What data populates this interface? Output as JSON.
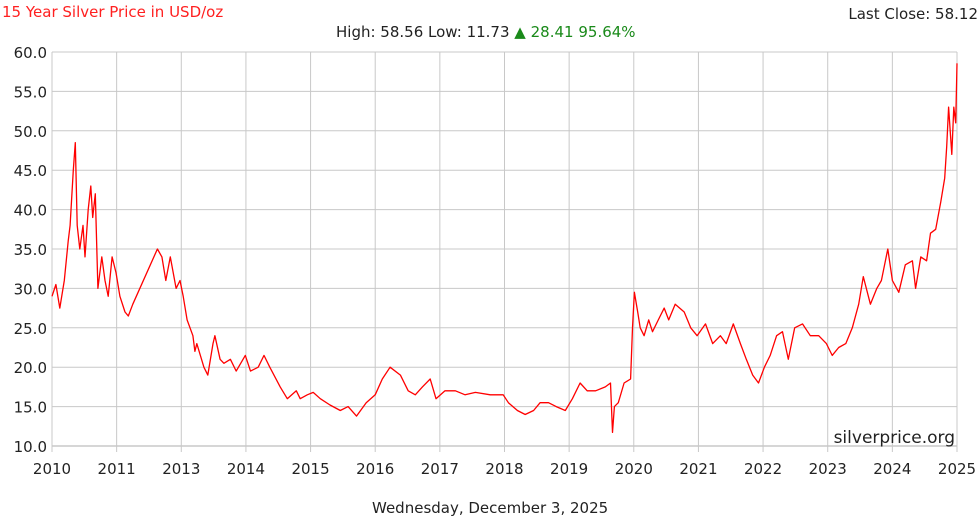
{
  "header": {
    "title": "15 Year Silver Price in USD/oz",
    "last_close_label": "Last Close: 58.12",
    "high_label": "High: 58.56",
    "low_label": "Low: 11.73",
    "change_arrow": "▲",
    "change_value": "28.41",
    "change_percent": "95.64%"
  },
  "footer": {
    "date": "Wednesday, December 3, 2025"
  },
  "watermark": "silverprice.org",
  "colors": {
    "line": "#ff0000",
    "title": "#ff2020",
    "change": "#1a8a1a",
    "grid": "#c8c8c8"
  },
  "chart_data": {
    "type": "line",
    "title": "15 Year Silver Price in USD/oz",
    "xlabel": "",
    "ylabel": "",
    "ylim": [
      10,
      60
    ],
    "xlim": [
      2010.92,
      2024.92
    ],
    "yticks": [
      "10.0",
      "15.0",
      "20.0",
      "25.0",
      "30.0",
      "35.0",
      "40.0",
      "45.0",
      "50.0",
      "55.0",
      "60.0"
    ],
    "xtick_labels": [
      "2010",
      "2011",
      "2013",
      "2014",
      "2015",
      "2016",
      "2017",
      "2018",
      "2019",
      "2020",
      "2021",
      "2022",
      "2023",
      "2024",
      "2025"
    ],
    "grid": true,
    "series": [
      {
        "points": [
          [
            2010.92,
            29
          ],
          [
            2010.98,
            30.5
          ],
          [
            2011.04,
            27.5
          ],
          [
            2011.11,
            31
          ],
          [
            2011.17,
            36
          ],
          [
            2011.2,
            38
          ],
          [
            2011.25,
            45
          ],
          [
            2011.28,
            48.5
          ],
          [
            2011.31,
            38
          ],
          [
            2011.35,
            35
          ],
          [
            2011.4,
            38
          ],
          [
            2011.43,
            34
          ],
          [
            2011.48,
            40
          ],
          [
            2011.52,
            43
          ],
          [
            2011.55,
            39
          ],
          [
            2011.59,
            42
          ],
          [
            2011.63,
            30
          ],
          [
            2011.69,
            34
          ],
          [
            2011.74,
            31
          ],
          [
            2011.79,
            29
          ],
          [
            2011.85,
            34
          ],
          [
            2011.91,
            32
          ],
          [
            2011.97,
            29
          ],
          [
            2012.05,
            27
          ],
          [
            2012.1,
            26.5
          ],
          [
            2012.17,
            28
          ],
          [
            2012.55,
            35
          ],
          [
            2012.62,
            34
          ],
          [
            2012.68,
            31
          ],
          [
            2012.75,
            34
          ],
          [
            2012.84,
            30
          ],
          [
            2012.9,
            31
          ],
          [
            2012.95,
            29
          ],
          [
            2013.01,
            26
          ],
          [
            2013.1,
            24
          ],
          [
            2013.13,
            22
          ],
          [
            2013.16,
            23
          ],
          [
            2013.27,
            20
          ],
          [
            2013.33,
            19
          ],
          [
            2013.41,
            23
          ],
          [
            2013.44,
            24
          ],
          [
            2013.52,
            21
          ],
          [
            2013.58,
            20.5
          ],
          [
            2013.68,
            21
          ],
          [
            2013.77,
            19.5
          ],
          [
            2013.91,
            21.5
          ],
          [
            2013.99,
            19.5
          ],
          [
            2014.11,
            20
          ],
          [
            2014.2,
            21.5
          ],
          [
            2014.29,
            20
          ],
          [
            2014.45,
            17.5
          ],
          [
            2014.56,
            16
          ],
          [
            2014.7,
            17
          ],
          [
            2014.76,
            16
          ],
          [
            2014.87,
            16.5
          ],
          [
            2014.96,
            16.8
          ],
          [
            2015.07,
            16
          ],
          [
            2015.22,
            15.2
          ],
          [
            2015.38,
            14.5
          ],
          [
            2015.5,
            15
          ],
          [
            2015.63,
            13.8
          ],
          [
            2015.78,
            15.5
          ],
          [
            2015.92,
            16.5
          ],
          [
            2016.03,
            18.5
          ],
          [
            2016.15,
            20
          ],
          [
            2016.31,
            19
          ],
          [
            2016.43,
            17
          ],
          [
            2016.54,
            16.5
          ],
          [
            2016.65,
            17.5
          ],
          [
            2016.77,
            18.5
          ],
          [
            2016.86,
            16
          ],
          [
            2017.0,
            17
          ],
          [
            2017.16,
            17
          ],
          [
            2017.31,
            16.5
          ],
          [
            2017.47,
            16.8
          ],
          [
            2017.7,
            16.5
          ],
          [
            2017.9,
            16.5
          ],
          [
            2017.98,
            15.5
          ],
          [
            2018.12,
            14.5
          ],
          [
            2018.24,
            14
          ],
          [
            2018.37,
            14.5
          ],
          [
            2018.47,
            15.5
          ],
          [
            2018.6,
            15.5
          ],
          [
            2018.72,
            15
          ],
          [
            2018.86,
            14.5
          ],
          [
            2018.97,
            16
          ],
          [
            2019.09,
            18
          ],
          [
            2019.2,
            17
          ],
          [
            2019.33,
            17
          ],
          [
            2019.48,
            17.5
          ],
          [
            2019.56,
            18
          ],
          [
            2019.59,
            11.73
          ],
          [
            2019.62,
            15
          ],
          [
            2019.68,
            15.5
          ],
          [
            2019.77,
            18
          ],
          [
            2019.87,
            18.5
          ],
          [
            2019.9,
            25
          ],
          [
            2019.93,
            29.5
          ],
          [
            2019.98,
            27
          ],
          [
            2020.02,
            25
          ],
          [
            2020.08,
            24
          ],
          [
            2020.15,
            26
          ],
          [
            2020.21,
            24.5
          ],
          [
            2020.3,
            26
          ],
          [
            2020.39,
            27.5
          ],
          [
            2020.46,
            26
          ],
          [
            2020.56,
            28
          ],
          [
            2020.7,
            27
          ],
          [
            2020.8,
            25
          ],
          [
            2020.9,
            24
          ],
          [
            2021.03,
            25.5
          ],
          [
            2021.14,
            23
          ],
          [
            2021.26,
            24
          ],
          [
            2021.35,
            23
          ],
          [
            2021.46,
            25.5
          ],
          [
            2021.57,
            23
          ],
          [
            2021.66,
            21
          ],
          [
            2021.76,
            19
          ],
          [
            2021.85,
            18
          ],
          [
            2021.94,
            20
          ],
          [
            2022.03,
            21.5
          ],
          [
            2022.13,
            24
          ],
          [
            2022.22,
            24.5
          ],
          [
            2022.31,
            21
          ],
          [
            2022.41,
            25
          ],
          [
            2022.53,
            25.5
          ],
          [
            2022.65,
            24
          ],
          [
            2022.78,
            24
          ],
          [
            2022.9,
            23
          ],
          [
            2022.99,
            21.5
          ],
          [
            2023.09,
            22.5
          ],
          [
            2023.2,
            23
          ],
          [
            2023.3,
            25
          ],
          [
            2023.4,
            28
          ],
          [
            2023.47,
            31.5
          ],
          [
            2023.58,
            28
          ],
          [
            2023.68,
            30
          ],
          [
            2023.75,
            31
          ],
          [
            2023.85,
            35
          ],
          [
            2023.92,
            31
          ],
          [
            2024.02,
            29.5
          ],
          [
            2024.12,
            33
          ],
          [
            2024.23,
            33.5
          ],
          [
            2024.28,
            30
          ],
          [
            2024.36,
            34
          ],
          [
            2024.45,
            33.5
          ],
          [
            2024.51,
            37
          ],
          [
            2024.59,
            37.5
          ],
          [
            2024.67,
            41
          ],
          [
            2024.73,
            44
          ],
          [
            2024.76,
            48
          ],
          [
            2024.79,
            53
          ],
          [
            2024.84,
            47
          ],
          [
            2024.87,
            53
          ],
          [
            2024.9,
            51
          ],
          [
            2024.91,
            55
          ],
          [
            2024.92,
            58.56
          ]
        ]
      }
    ]
  }
}
